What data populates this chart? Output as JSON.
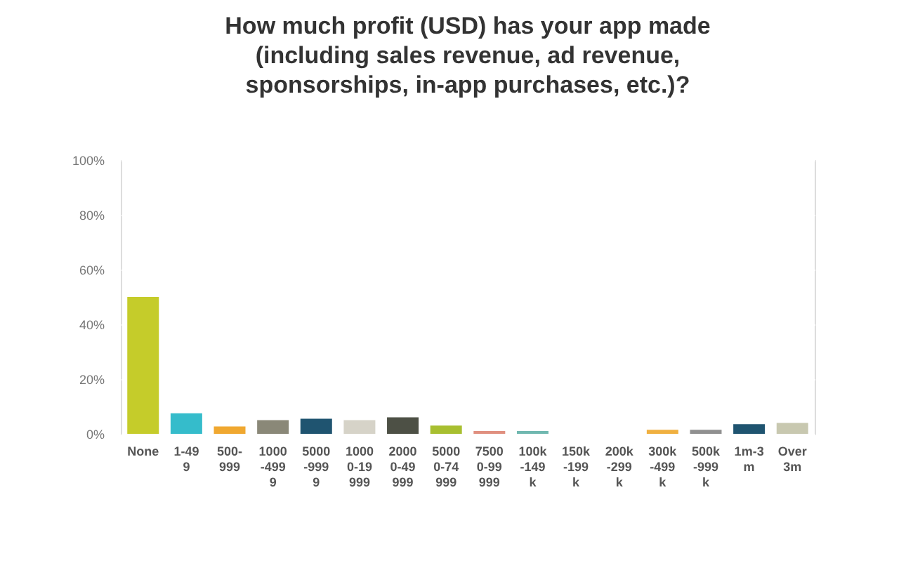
{
  "chart_data": {
    "type": "bar",
    "title": "How much profit (USD) has your app made (including sales revenue, ad revenue, sponsorships, in-app purchases, etc.)?",
    "categories": [
      "None",
      "1-499",
      "500-999",
      "1000-4999",
      "5000-9999",
      "10000-19999",
      "20000-49999",
      "50000-74999",
      "75000-99999",
      "100k-149k",
      "150k-199k",
      "200k-299k",
      "300k-499k",
      "500k-999k",
      "1m-3m",
      "Over 3m"
    ],
    "values": [
      50,
      7.5,
      2.7,
      5,
      5.5,
      5,
      6,
      3,
      1,
      1,
      0,
      0,
      1.5,
      1.5,
      3.5,
      4
    ],
    "colors": [
      "#c5cc2a",
      "#35bccb",
      "#f0a830",
      "#8a8878",
      "#1f5470",
      "#d6d3c8",
      "#4d5045",
      "#a8bf30",
      "#e09080",
      "#70b8b0",
      "#b0b0b0",
      "#b0b0b0",
      "#f0b040",
      "#909090",
      "#1f5470",
      "#c8c8b0"
    ],
    "ylim": [
      0,
      100
    ],
    "yticks": [
      {
        "value": 0,
        "label": "0%"
      },
      {
        "value": 20,
        "label": "20%"
      },
      {
        "value": 40,
        "label": "40%"
      },
      {
        "value": 60,
        "label": "60%"
      },
      {
        "value": 80,
        "label": "80%"
      },
      {
        "value": 100,
        "label": "100%"
      }
    ],
    "grid": "y"
  }
}
